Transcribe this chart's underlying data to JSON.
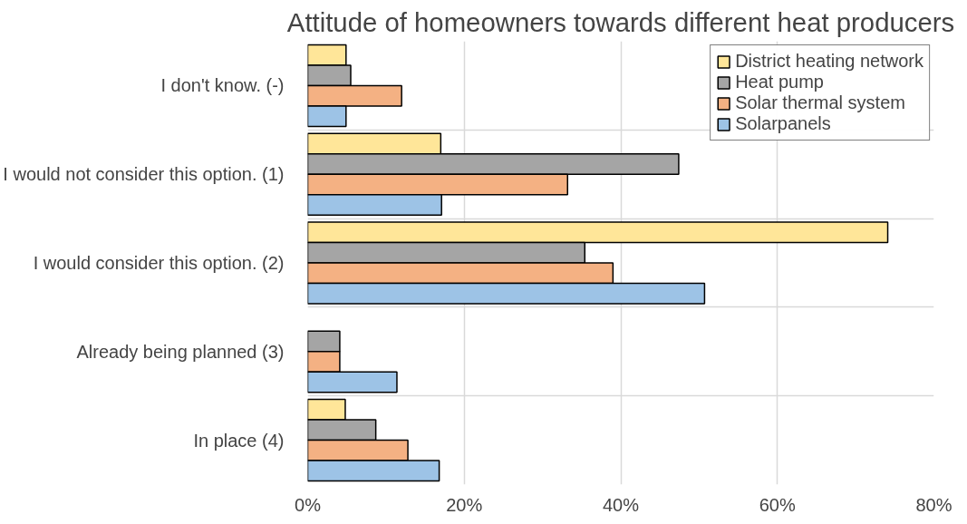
{
  "chart_data": {
    "type": "bar",
    "orientation": "horizontal",
    "title": "Attitude of homeowners towards different heat producers",
    "categories": [
      "I don't know. (-)",
      "I would not consider this option. (1)",
      "I would consider this option. (2)",
      "Already being planned (3)",
      "In place (4)"
    ],
    "series": [
      {
        "name": "District heating network",
        "color": "#ffe699",
        "values": [
          4.9,
          17.0,
          74.1,
          null,
          4.8
        ]
      },
      {
        "name": "Heat pump",
        "color": "#a5a5a5",
        "values": [
          5.5,
          47.4,
          35.4,
          4.1,
          8.7
        ]
      },
      {
        "name": "Solar thermal system",
        "color": "#f4b183",
        "values": [
          12.0,
          33.2,
          39.0,
          4.1,
          12.8
        ]
      },
      {
        "name": "Solarpanels",
        "color": "#9dc3e6",
        "values": [
          4.9,
          17.1,
          50.7,
          11.4,
          16.8
        ]
      }
    ],
    "xlim": [
      0,
      80
    ],
    "xticks": [
      {
        "value": 0,
        "label": "0%"
      },
      {
        "value": 20,
        "label": "20%"
      },
      {
        "value": 40,
        "label": "40%"
      },
      {
        "value": 60,
        "label": "60%"
      },
      {
        "value": 80,
        "label": "80%"
      }
    ],
    "grid": true,
    "legend": "top right"
  }
}
